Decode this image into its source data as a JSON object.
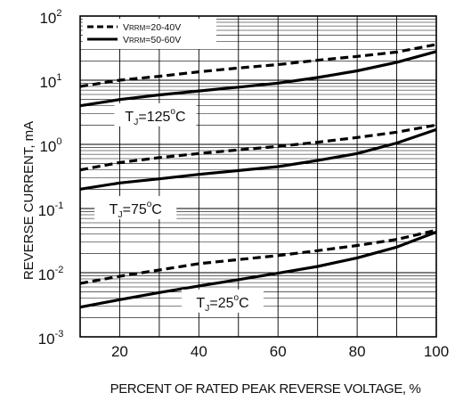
{
  "chart_data": {
    "type": "line",
    "xlabel": "PERCENT OF RATED PEAK  REVERSE VOLTAGE, %",
    "ylabel": "REVERSE CURRENT, mA",
    "xlim": [
      10,
      100
    ],
    "ylim": [
      0.001,
      100
    ],
    "yscale": "log",
    "grid": true,
    "legend_position": "top-left",
    "x_ticks": [
      20,
      40,
      60,
      80,
      100
    ],
    "y_ticks": [
      {
        "value": 0.001,
        "base": "10",
        "exp": "-3"
      },
      {
        "value": 0.01,
        "base": "10",
        "exp": "-2"
      },
      {
        "value": 0.1,
        "base": "10",
        "exp": "-1"
      },
      {
        "value": 1,
        "base": "10",
        "exp": "0"
      },
      {
        "value": 10,
        "base": "10",
        "exp": "1"
      },
      {
        "value": 100,
        "base": "10",
        "exp": "2"
      }
    ],
    "legend": [
      {
        "label_prefix": "V",
        "label_sub": "RRM",
        "label_suffix": "=20-40V",
        "style": "dashed",
        "series_key": "20-40V"
      },
      {
        "label_prefix": "V",
        "label_sub": "RRM",
        "label_suffix": "=50-60V",
        "style": "solid",
        "series_key": "50-60V"
      }
    ],
    "annotations": [
      {
        "prefix": "T",
        "sub": "J",
        "text": "=125",
        "sup": "o",
        "suffix": "C",
        "x": 29,
        "y": 2.8
      },
      {
        "prefix": "T",
        "sub": "J",
        "text": "=75",
        "sup": "o",
        "suffix": "C",
        "x": 24,
        "y": 0.1
      },
      {
        "prefix": "T",
        "sub": "J",
        "text": "=25",
        "sup": "o",
        "suffix": "C",
        "x": 46,
        "y": 0.0035
      }
    ],
    "series": [
      {
        "group": "125C",
        "legend_key": "20-40V",
        "style": "dashed",
        "x": [
          10,
          20,
          30,
          40,
          50,
          60,
          70,
          80,
          90,
          100
        ],
        "y": [
          8.0,
          10.0,
          11.5,
          13.5,
          15.5,
          17.5,
          20.5,
          23.5,
          27.5,
          36
        ]
      },
      {
        "group": "125C",
        "legend_key": "50-60V",
        "style": "solid",
        "x": [
          10,
          20,
          30,
          40,
          50,
          60,
          70,
          80,
          90,
          100
        ],
        "y": [
          4.0,
          5.0,
          5.9,
          6.8,
          7.8,
          9.0,
          11.0,
          14.0,
          19.0,
          28
        ]
      },
      {
        "group": "75C",
        "legend_key": "20-40V",
        "style": "dashed",
        "x": [
          10,
          20,
          30,
          40,
          50,
          60,
          70,
          80,
          90,
          100
        ],
        "y": [
          0.4,
          0.52,
          0.62,
          0.72,
          0.82,
          0.93,
          1.08,
          1.28,
          1.55,
          2.0
        ]
      },
      {
        "group": "75C",
        "legend_key": "50-60V",
        "style": "solid",
        "x": [
          10,
          20,
          30,
          40,
          50,
          60,
          70,
          80,
          90,
          100
        ],
        "y": [
          0.2,
          0.25,
          0.29,
          0.34,
          0.39,
          0.45,
          0.56,
          0.72,
          1.05,
          1.7
        ]
      },
      {
        "group": "25C",
        "legend_key": "20-40V",
        "style": "dashed",
        "x": [
          10,
          20,
          30,
          40,
          50,
          60,
          70,
          80,
          90,
          100
        ],
        "y": [
          0.0068,
          0.0088,
          0.011,
          0.0138,
          0.016,
          0.0185,
          0.022,
          0.0265,
          0.033,
          0.046
        ]
      },
      {
        "group": "25C",
        "legend_key": "50-60V",
        "style": "solid",
        "x": [
          10,
          20,
          30,
          40,
          50,
          60,
          70,
          80,
          90,
          100
        ],
        "y": [
          0.0029,
          0.0038,
          0.0049,
          0.0062,
          0.0078,
          0.0098,
          0.0125,
          0.017,
          0.025,
          0.043
        ]
      }
    ]
  }
}
